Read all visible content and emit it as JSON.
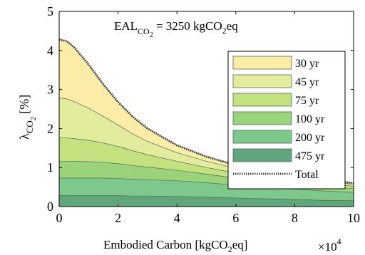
{
  "chart_data": {
    "type": "area",
    "stacked": true,
    "annotation": {
      "prefix": "EAL",
      "prefix_sub": "CO",
      "prefix_sub2": "2",
      "equals": " = 3250 kgCO",
      "unit_sub": "2",
      "unit_end": "eq"
    },
    "xlabel": {
      "main": "Embodied Carbon [kgCO",
      "sub": "2",
      "end": "eq]"
    },
    "x_multiplier": {
      "base": "×10",
      "exp": "4"
    },
    "ylabel": {
      "main": "λ",
      "sub": "CO",
      "subsub": "2",
      "end": " [%]"
    },
    "xlim": [
      0,
      100000
    ],
    "ylim": [
      0,
      5
    ],
    "x_ticks": [
      0,
      20000,
      40000,
      60000,
      80000,
      100000
    ],
    "x_tick_labels": [
      "0",
      "2",
      "4",
      "6",
      "8",
      "10"
    ],
    "y_ticks": [
      0,
      1,
      2,
      3,
      4,
      5
    ],
    "y_tick_labels": [
      "0",
      "1",
      "2",
      "3",
      "4",
      "5"
    ],
    "legend_position": "right",
    "x": [
      0,
      2500,
      5000,
      10000,
      15000,
      20000,
      25000,
      30000,
      40000,
      50000,
      60000,
      70000,
      80000,
      90000,
      100000
    ],
    "series": [
      {
        "name": "475 yr",
        "color": "#5fa67a",
        "values": [
          0.28,
          0.28,
          0.28,
          0.28,
          0.28,
          0.28,
          0.27,
          0.27,
          0.26,
          0.24,
          0.22,
          0.2,
          0.18,
          0.16,
          0.15
        ]
      },
      {
        "name": "200 yr",
        "color": "#7ec88c",
        "values": [
          0.45,
          0.45,
          0.45,
          0.45,
          0.45,
          0.44,
          0.43,
          0.42,
          0.4,
          0.37,
          0.33,
          0.3,
          0.27,
          0.24,
          0.21
        ]
      },
      {
        "name": "100 yr",
        "color": "#9ad37a",
        "values": [
          0.43,
          0.43,
          0.43,
          0.42,
          0.4,
          0.38,
          0.35,
          0.32,
          0.27,
          0.22,
          0.18,
          0.16,
          0.14,
          0.12,
          0.1
        ]
      },
      {
        "name": "75 yr",
        "color": "#c3e17e",
        "values": [
          0.6,
          0.6,
          0.58,
          0.55,
          0.5,
          0.44,
          0.38,
          0.32,
          0.23,
          0.17,
          0.13,
          0.1,
          0.08,
          0.07,
          0.06
        ]
      },
      {
        "name": "45 yr",
        "color": "#e2ec9c",
        "values": [
          1.02,
          1.0,
          0.95,
          0.82,
          0.68,
          0.55,
          0.43,
          0.34,
          0.22,
          0.16,
          0.12,
          0.09,
          0.07,
          0.06,
          0.05
        ]
      },
      {
        "name": "30 yr",
        "color": "#fbeca8",
        "values": [
          1.5,
          1.48,
          1.4,
          1.12,
          0.82,
          0.59,
          0.44,
          0.33,
          0.19,
          0.12,
          0.08,
          0.06,
          0.05,
          0.04,
          0.03
        ]
      }
    ],
    "total": {
      "name": "Total",
      "values": [
        4.28,
        4.24,
        4.09,
        3.64,
        3.13,
        2.68,
        2.3,
        2.0,
        1.57,
        1.28,
        1.06,
        0.91,
        0.79,
        0.69,
        0.6
      ]
    }
  }
}
